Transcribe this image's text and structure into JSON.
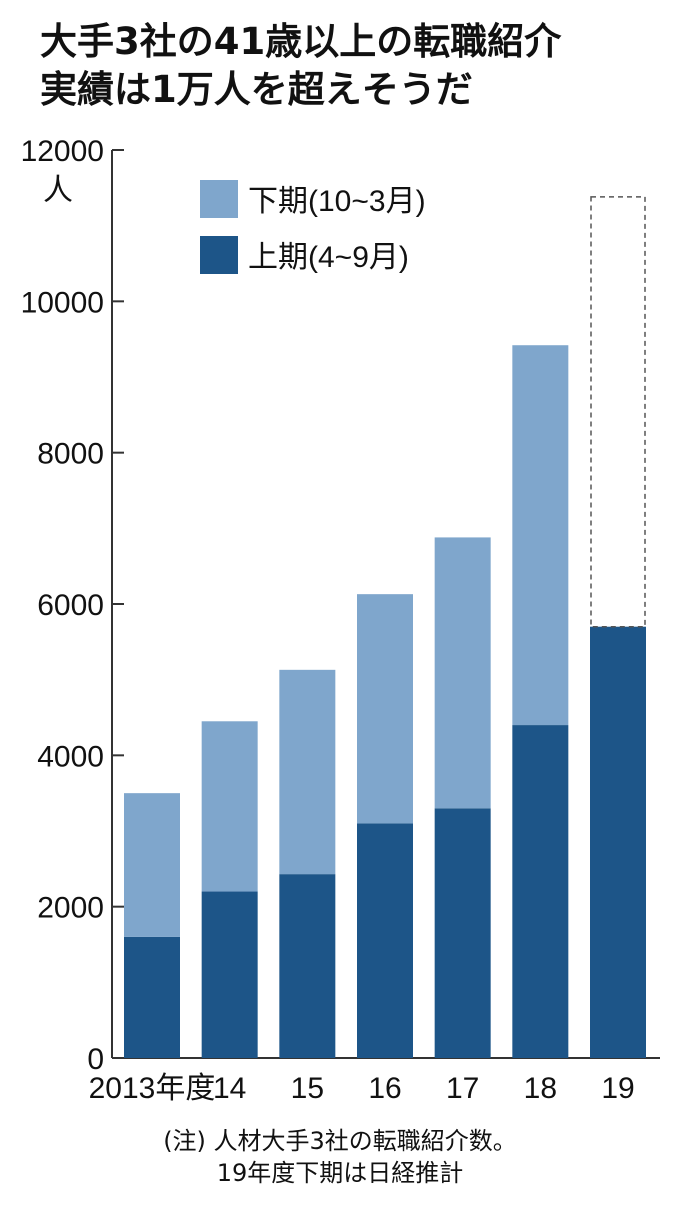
{
  "title": {
    "line1": "大手3社の41歳以上の転職紹介",
    "line2": "実績は1万人を超えそうだ"
  },
  "note": {
    "line1": "(注) 人材大手3社の転職紹介数。",
    "line2": "19年度下期は日経推計"
  },
  "colors": {
    "upper_half": "#7fa6cc",
    "lower_half": "#1d5588",
    "estimate_outline": "#555555",
    "axis": "#333333"
  },
  "chart_data": {
    "type": "bar",
    "stacked": true,
    "categories": [
      "2013年度",
      "14",
      "15",
      "16",
      "17",
      "18",
      "19"
    ],
    "series": [
      {
        "name": "上期(4~9月)",
        "values": [
          1600,
          2200,
          2430,
          3100,
          3300,
          4400,
          5700
        ]
      },
      {
        "name": "下期(10~3月)",
        "values": [
          1900,
          2250,
          2700,
          3030,
          3580,
          5020,
          null
        ]
      }
    ],
    "estimate": {
      "category": "19",
      "series": "下期(10~3月)",
      "value": 5680,
      "style": "dashed-outline"
    },
    "y_unit": "人",
    "ylim": [
      0,
      12000
    ],
    "yticks": [
      0,
      2000,
      4000,
      6000,
      8000,
      10000,
      12000
    ],
    "legend": {
      "position": "top-center",
      "order": [
        "下期(10~3月)",
        "上期(4~9月)"
      ]
    },
    "grid": false
  }
}
